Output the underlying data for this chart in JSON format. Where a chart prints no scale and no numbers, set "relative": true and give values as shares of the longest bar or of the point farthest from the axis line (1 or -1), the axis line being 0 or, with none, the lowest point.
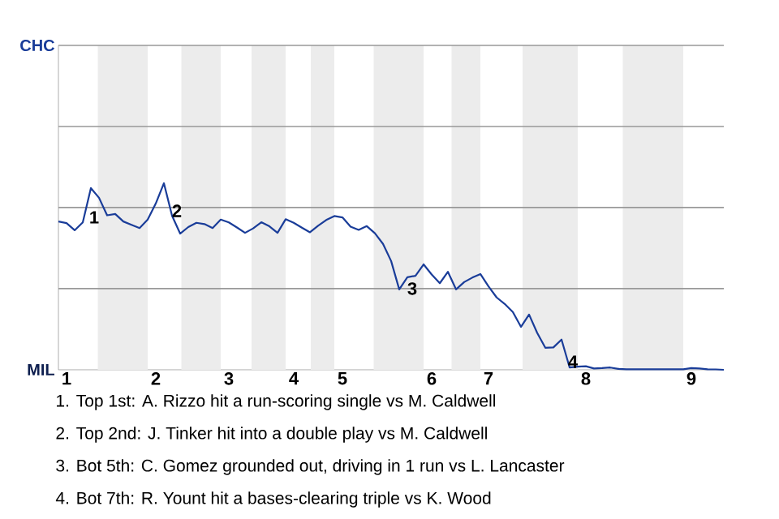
{
  "chart_data": {
    "type": "line",
    "relative": true,
    "categories": [
      null,
      "1",
      null,
      null,
      null,
      null,
      null,
      null,
      null,
      null,
      null,
      null,
      "2",
      null,
      null,
      null,
      null,
      null,
      null,
      null,
      null,
      "3",
      null,
      null,
      null,
      null,
      null,
      null,
      null,
      "4",
      null,
      null,
      null,
      null,
      null,
      "5",
      null,
      null,
      null,
      null,
      null,
      null,
      null,
      null,
      null,
      null,
      "6",
      null,
      null,
      null,
      null,
      null,
      null,
      "7",
      null,
      null,
      null,
      null,
      null,
      null,
      null,
      null,
      null,
      null,
      null,
      "8",
      null,
      null,
      null,
      null,
      null,
      null,
      null,
      null,
      null,
      null,
      null,
      null,
      "9",
      null,
      null,
      null,
      null
    ],
    "series": [
      {
        "color": "#1a3d99",
        "values": [
          0.795,
          0.786,
          0.748,
          0.79,
          0.974,
          0.922,
          0.828,
          0.835,
          0.795,
          0.777,
          0.76,
          0.805,
          0.892,
          1,
          0.826,
          0.73,
          0.765,
          0.788,
          0.781,
          0.76,
          0.805,
          0.79,
          0.763,
          0.734,
          0.758,
          0.791,
          0.769,
          0.734,
          0.807,
          0.788,
          0.762,
          0.737,
          0.772,
          0.803,
          0.824,
          0.817,
          0.767,
          0.75,
          0.77,
          0.732,
          0.675,
          0.583,
          0.431,
          0.496,
          0.504,
          0.565,
          0.511,
          0.464,
          0.525,
          0.431,
          0.47,
          0.494,
          0.513,
          0.447,
          0.388,
          0.353,
          0.31,
          0.23,
          0.296,
          0.198,
          0.118,
          0.12,
          0.162,
          0.012,
          0.017,
          0.019,
          0.007,
          0.009,
          0.012,
          0.005,
          0.003,
          0.003,
          0.003,
          0.003,
          0.003,
          0.003,
          0.003,
          0.003,
          0.009,
          0.007,
          0.003,
          0.002,
          0
        ]
      }
    ],
    "ref_lines": [
      {
        "axis": "y",
        "value": 0.435,
        "color": "#999999"
      },
      {
        "axis": "y",
        "value": 0.87,
        "color": "#999999"
      },
      {
        "axis": "y",
        "value": 1.304,
        "color": "#999999"
      },
      {
        "axis": "y",
        "value": 1.739,
        "color": "#999999"
      }
    ],
    "marker": "none",
    "line_style": "solid",
    "annotations": [
      "CHC",
      "MIL",
      "1",
      "2",
      "3",
      "4",
      "1. Top 1st: A. Rizzo hit a run-scoring single vs M. Caldwell",
      "2. Top 2nd: J. Tinker hit into a double play vs M. Caldwell",
      "3. Bot 5th: C. Gomez grounded out, driving in 1 run vs L. Lancaster",
      "4. Bot 7th: R. Yount hit a bases-clearing triple vs K. Wood"
    ]
  }
}
